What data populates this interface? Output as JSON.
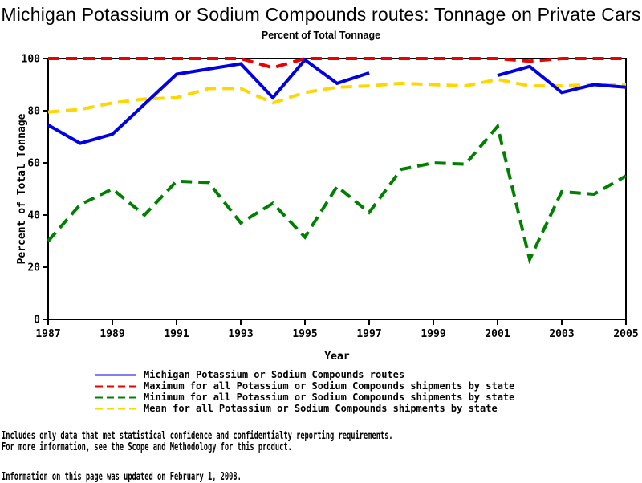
{
  "chart_data": {
    "type": "line",
    "title": "Michigan Potassium or Sodium Compounds routes: Tonnage on Private Cars",
    "subtitle": "Percent of Total Tonnage",
    "xlabel": "Year",
    "ylabel": "Percent of Total Tonnage",
    "xlim": [
      1987,
      2005
    ],
    "ylim": [
      0,
      100
    ],
    "xticks": [
      1987,
      1989,
      1991,
      1993,
      1995,
      1997,
      1999,
      2001,
      2003,
      2005
    ],
    "yticks": [
      0,
      20,
      40,
      60,
      80,
      100
    ],
    "grid": false,
    "legend_position": "bottom-left",
    "frame_color": "#000000",
    "x": [
      1987,
      1988,
      1989,
      1990,
      1991,
      1992,
      1993,
      1994,
      1995,
      1996,
      1997,
      1998,
      1999,
      2000,
      2001,
      2002,
      2003,
      2004,
      2005
    ],
    "series": [
      {
        "id": "michigan",
        "name": "Michigan Potassium or Sodium Compounds routes",
        "color": "#0000e6",
        "style": "solid",
        "values": [
          74.5,
          67.5,
          71,
          82.5,
          94,
          96,
          98,
          85,
          99.5,
          90.5,
          94.5,
          null,
          null,
          null,
          93.5,
          97,
          87,
          90,
          89
        ]
      },
      {
        "id": "maximum",
        "name": "Maximum for all Potassium or Sodium Compounds shipments by state",
        "color": "#ee0000",
        "style": "dashed",
        "values": [
          100,
          100,
          100,
          100,
          100,
          100,
          100,
          96.5,
          100,
          100,
          100,
          100,
          100,
          100,
          100,
          99,
          100,
          100,
          100
        ]
      },
      {
        "id": "minimum",
        "name": "Minimum for all Potassium or Sodium Compounds shipments by state",
        "color": "#008000",
        "style": "dashed",
        "values": [
          30,
          44,
          50,
          40,
          53,
          52.5,
          37,
          44.5,
          31.5,
          51,
          41,
          57.5,
          60,
          59.5,
          74,
          23,
          49,
          48,
          55
        ]
      },
      {
        "id": "mean",
        "name": "Mean for all Potassium or Sodium Compounds shipments by state",
        "color": "#ffd700",
        "style": "dashed",
        "values": [
          79.5,
          80.5,
          83,
          84.5,
          85,
          88.5,
          88.5,
          83,
          87,
          89,
          89.5,
          90.5,
          90,
          89.5,
          92,
          89.5,
          89.5,
          90,
          90
        ]
      }
    ]
  },
  "footer": {
    "line1": "Includes only data that met statistical confidence and confidentialty reporting requirements.",
    "line2": "For more information, see the Scope and Methodology for this product.",
    "line3": "Information on this page was updated on February 1, 2008."
  }
}
